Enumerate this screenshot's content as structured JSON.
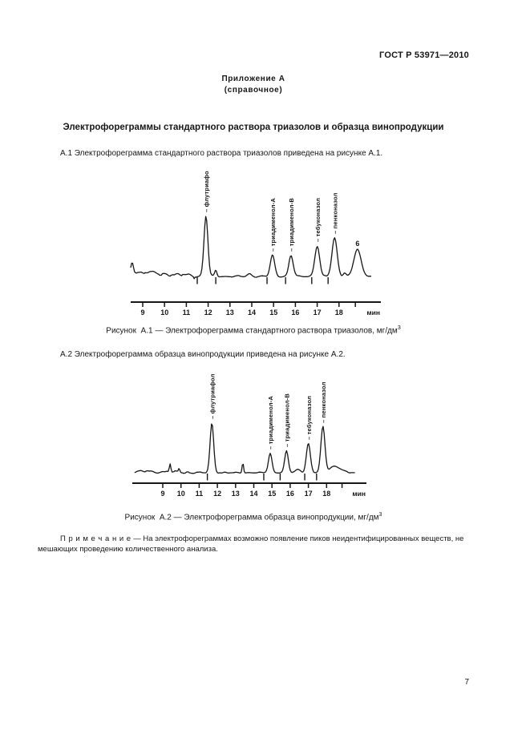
{
  "doc": {
    "header_code": "ГОСТ Р 53971—2010",
    "page_number": "7"
  },
  "annex": {
    "title": "Приложение А",
    "subtitle": "(справочное)"
  },
  "main_title": "Электрофореграммы стандартного раствора триазолов и образца винопродукции",
  "paragraphs": {
    "a1": "А.1  Электрофореграмма стандартного раствора триазолов приведена на рисунке А.1.",
    "a2": "А.2  Электрофореграмма образца винопродукции приведена на рисунке А.2."
  },
  "figures": [
    {
      "caption": "Рисунок  А.1 — Электрофореграмма стандартного раствора триазолов, мг/дм",
      "caption_sup": "3"
    },
    {
      "caption": "Рисунок  А.2 — Электрофореграмма образца винопродукции, мг/дм",
      "caption_sup": "3"
    }
  ],
  "note": {
    "label": "П р и м е ч а н и е",
    "text": " — На электрофореграммах возможно появление пиков неидентифицированных веществ, не мешающих проведению количественного анализа."
  },
  "chart_data": [
    {
      "type": "line",
      "title": "Электрофореграмма стандартного раствора триазолов",
      "x_unit": "мин",
      "x_ticks": [
        9,
        10,
        11,
        12,
        13,
        14,
        15,
        16,
        17,
        18
      ],
      "extra_tick_t": 18.75,
      "x_range": [
        8.45,
        19.5
      ],
      "y_axis": "none (relative signal)",
      "peaks": [
        {
          "name": "флутриафол",
          "t_min": 11.9,
          "rel_height": 75,
          "sigma": 0.09
        },
        {
          "name": "триадименол-А",
          "t_min": 14.95,
          "rel_height": 26,
          "sigma": 0.1
        },
        {
          "name": "триадименол-В",
          "t_min": 15.8,
          "rel_height": 26,
          "sigma": 0.1
        },
        {
          "name": "тебуконазол",
          "t_min": 17.0,
          "rel_height": 38,
          "sigma": 0.11
        },
        {
          "name": "пенконазол",
          "t_min": 17.8,
          "rel_height": 48,
          "sigma": 0.12
        },
        {
          "name": "6",
          "t_min": 18.85,
          "rel_height": 33,
          "sigma": 0.17,
          "label_orientation": "horizontal"
        }
      ],
      "minor_peaks": [
        {
          "t_min": 8.52,
          "rel_height": 13,
          "sigma": 0.05
        },
        {
          "t_min": 12.35,
          "rel_height": 8,
          "sigma": 0.05
        },
        {
          "t_min": 13.9,
          "rel_height": 3,
          "sigma": 0.09
        },
        {
          "t_min": 18.25,
          "rel_height": 4,
          "sigma": 0.07
        }
      ],
      "integration_marks_t": [
        11.5,
        12.35,
        14.7,
        15.55,
        16.75,
        17.5
      ]
    },
    {
      "type": "line",
      "title": "Электрофореграмма образца винопродукции",
      "x_unit": "мин",
      "x_ticks": [
        9,
        10,
        11,
        12,
        13,
        14,
        15,
        16,
        17,
        18
      ],
      "extra_tick_t": 18.85,
      "x_range": [
        7.45,
        19.6
      ],
      "y_axis": "none (relative signal)",
      "peaks": [
        {
          "name": "флутриафол",
          "t_min": 11.7,
          "rel_height": 62,
          "sigma": 0.1
        },
        {
          "name": "триадименол-А",
          "t_min": 14.9,
          "rel_height": 24,
          "sigma": 0.1
        },
        {
          "name": "триадименол-В",
          "t_min": 15.8,
          "rel_height": 27,
          "sigma": 0.1
        },
        {
          "name": "тебуконазол",
          "t_min": 17.0,
          "rel_height": 36,
          "sigma": 0.11
        },
        {
          "name": "пенконазол",
          "t_min": 17.8,
          "rel_height": 57,
          "sigma": 0.11
        }
      ],
      "minor_peaks": [
        {
          "t_min": 9.4,
          "rel_height": 10,
          "sigma": 0.04
        },
        {
          "t_min": 9.9,
          "rel_height": 5,
          "sigma": 0.04
        },
        {
          "t_min": 13.4,
          "rel_height": 13,
          "sigma": 0.04
        },
        {
          "t_min": 16.45,
          "rel_height": 4,
          "sigma": 0.15
        },
        {
          "t_min": 18.45,
          "rel_height": 8,
          "sigma": 0.3
        }
      ],
      "integration_marks_t": [
        11.45,
        14.55,
        15.45,
        16.8,
        17.45
      ]
    }
  ]
}
